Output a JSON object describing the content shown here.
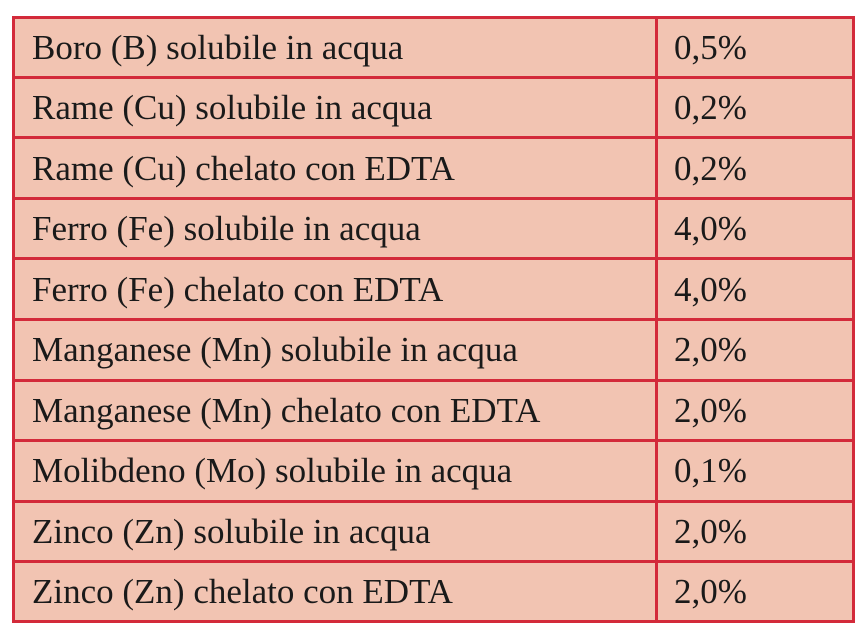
{
  "table": {
    "rows": [
      {
        "element": "Boro (B) solubile in acqua",
        "value": "0,5%"
      },
      {
        "element": "Rame (Cu) solubile in acqua",
        "value": "0,2%"
      },
      {
        "element": "Rame (Cu) chelato con EDTA",
        "value": "0,2%"
      },
      {
        "element": "Ferro (Fe) solubile in acqua",
        "value": "4,0%"
      },
      {
        "element": "Ferro (Fe) chelato con EDTA",
        "value": "4,0%"
      },
      {
        "element": "Manganese (Mn) solubile in acqua",
        "value": "2,0%"
      },
      {
        "element": "Manganese (Mn) chelato con EDTA",
        "value": "2,0%"
      },
      {
        "element": "Molibdeno (Mo) solubile in acqua",
        "value": "0,1%"
      },
      {
        "element": "Zinco (Zn) solubile in acqua",
        "value": "2,0%"
      },
      {
        "element": "Zinco (Zn) chelato con EDTA",
        "value": "2,0%"
      }
    ]
  },
  "colors": {
    "border": "#d32a3a",
    "cell_background": "#f2c4b2",
    "text": "#1a1a1a"
  }
}
